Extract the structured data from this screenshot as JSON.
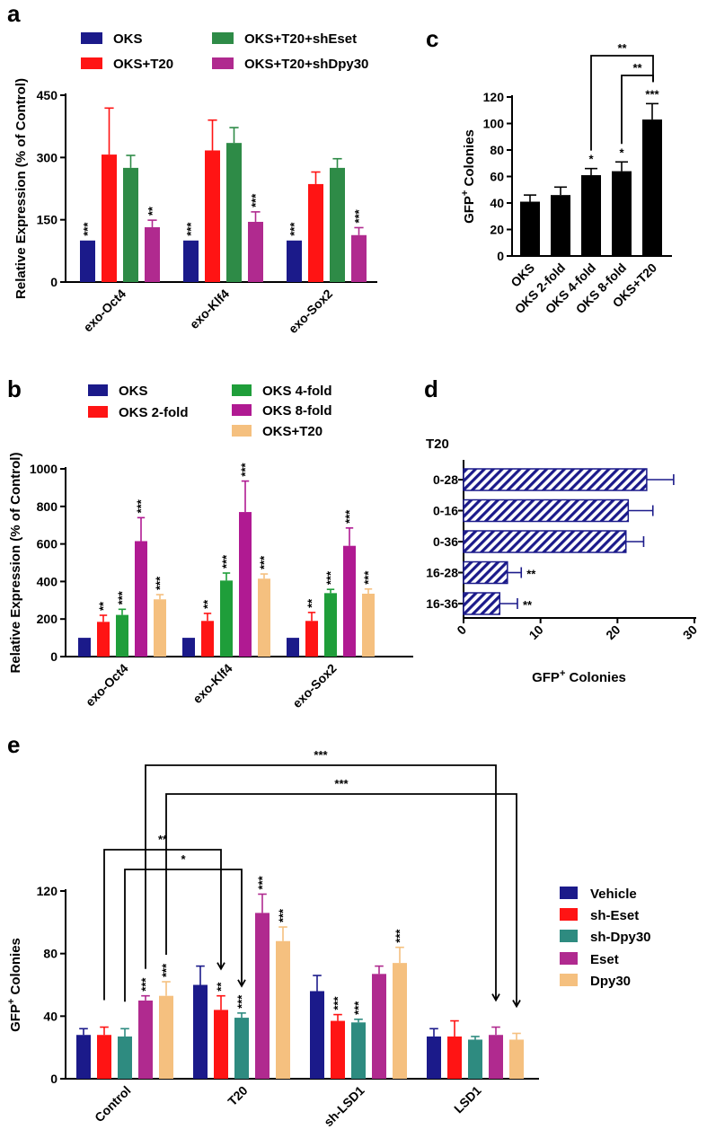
{
  "chart_data": [
    {
      "id": "a",
      "panel_label": "a",
      "type": "bar",
      "ylabel": "Relative Expression (% of Control)",
      "ylim": [
        0,
        450
      ],
      "yticks": [
        0,
        150,
        300,
        450
      ],
      "categories": [
        "exo-Oct4",
        "exo-Klf4",
        "exo-Sox2"
      ],
      "legend": "top",
      "series": [
        {
          "name": "OKS",
          "color": "#1b1a8a",
          "values": [
            100,
            100,
            100
          ],
          "errors": [
            0,
            0,
            0
          ],
          "stars": [
            "***",
            "***",
            "***"
          ]
        },
        {
          "name": "OKS+T20",
          "color": "#ff1414",
          "values": [
            307,
            317,
            236
          ],
          "errors": [
            112,
            73,
            29
          ],
          "stars": [
            "",
            "",
            ""
          ]
        },
        {
          "name": "OKS+T20+shEset",
          "color": "#2e8b47",
          "values": [
            275,
            335,
            275
          ],
          "errors": [
            30,
            37,
            22
          ],
          "stars": [
            "",
            "",
            ""
          ]
        },
        {
          "name": "OKS+T20+shDpy30",
          "color": "#b02a8f",
          "values": [
            132,
            145,
            113
          ],
          "errors": [
            17,
            24,
            18
          ],
          "stars": [
            "**",
            "***",
            "***"
          ]
        }
      ]
    },
    {
      "id": "b",
      "panel_label": "b",
      "type": "bar",
      "ylabel": "Relative Expression (% of Control)",
      "ylim": [
        0,
        1000
      ],
      "yticks": [
        0,
        200,
        400,
        600,
        800,
        1000
      ],
      "categories": [
        "exo-Oct4",
        "exo-Klf4",
        "exo-Sox2"
      ],
      "legend": "top",
      "series": [
        {
          "name": "OKS",
          "color": "#1b1a8a",
          "values": [
            100,
            100,
            100
          ],
          "errors": [
            0,
            0,
            0
          ],
          "stars": [
            "",
            "",
            ""
          ]
        },
        {
          "name": "OKS 2-fold",
          "color": "#ff1414",
          "values": [
            185,
            190,
            190
          ],
          "errors": [
            35,
            40,
            45
          ],
          "stars": [
            "**",
            "**",
            "**"
          ]
        },
        {
          "name": "OKS 4-fold",
          "color": "#1f9e3a",
          "values": [
            222,
            405,
            338
          ],
          "errors": [
            30,
            40,
            20
          ],
          "stars": [
            "***",
            "***",
            "***"
          ]
        },
        {
          "name": "OKS 8-fold",
          "color": "#b01a92",
          "values": [
            615,
            770,
            590
          ],
          "errors": [
            125,
            165,
            95
          ],
          "stars": [
            "***",
            "***",
            "***"
          ]
        },
        {
          "name": "OKS+T20",
          "color": "#f5c07f",
          "values": [
            305,
            415,
            335
          ],
          "errors": [
            25,
            25,
            25
          ],
          "stars": [
            "***",
            "***",
            "***"
          ]
        }
      ]
    },
    {
      "id": "c",
      "panel_label": "c",
      "type": "bar",
      "ylabel": "GFP+ Colonies",
      "ylim": [
        0,
        120
      ],
      "yticks": [
        0,
        20,
        40,
        60,
        80,
        100,
        120
      ],
      "categories": [
        "OKS",
        "OKS 2-fold",
        "OKS 4-fold",
        "OKS 8-fold",
        "OKS+T20"
      ],
      "values": [
        41,
        46,
        61,
        64,
        103
      ],
      "errors": [
        5,
        6,
        5,
        7,
        12
      ],
      "stars": [
        "",
        "",
        "*",
        "*",
        "***"
      ],
      "color": "#000000",
      "comparisons": [
        {
          "from": 2,
          "to": 4,
          "label": "**"
        },
        {
          "from": 3,
          "to": 4,
          "label": "**"
        }
      ]
    },
    {
      "id": "d",
      "panel_label": "d",
      "type": "bar",
      "orientation": "horizontal",
      "group_title": "T20",
      "xlabel": "GFP+ Colonies",
      "xlim": [
        0,
        30
      ],
      "xticks": [
        0,
        10,
        20,
        30
      ],
      "categories": [
        "0-28",
        "0-16",
        "0-36",
        "16-28",
        "16-36"
      ],
      "values": [
        23.8,
        21.4,
        21.1,
        5.7,
        4.7
      ],
      "errors": [
        3.5,
        3.2,
        2.3,
        1.8,
        2.3
      ],
      "stars": [
        "",
        "",
        "",
        "**",
        "**"
      ],
      "color": "#1b1a8a"
    },
    {
      "id": "e",
      "panel_label": "e",
      "type": "bar",
      "ylabel": "GFP+ Colonies",
      "ylim": [
        0,
        120
      ],
      "yticks": [
        0,
        40,
        80,
        120
      ],
      "categories": [
        "Control",
        "T20",
        "sh-LSD1",
        "LSD1"
      ],
      "legend": "right",
      "series": [
        {
          "name": "Vehicle",
          "color": "#1b1a8a",
          "values": [
            28,
            60,
            56,
            27
          ],
          "errors": [
            4,
            12,
            10,
            5
          ],
          "stars": [
            "",
            "",
            "",
            ""
          ]
        },
        {
          "name": "sh-Eset",
          "color": "#ff1414",
          "values": [
            28,
            44,
            37,
            27
          ],
          "errors": [
            5,
            9,
            4,
            10
          ],
          "stars": [
            "",
            "**",
            "***",
            ""
          ]
        },
        {
          "name": "sh-Dpy30",
          "color": "#2e8b80",
          "values": [
            27,
            39,
            36,
            25
          ],
          "errors": [
            5,
            3,
            2,
            2
          ],
          "stars": [
            "",
            "***",
            "***",
            ""
          ]
        },
        {
          "name": "Eset",
          "color": "#b02a8f",
          "values": [
            50,
            106,
            67,
            28
          ],
          "errors": [
            3,
            12,
            5,
            5
          ],
          "stars": [
            "***",
            "***",
            "",
            ""
          ]
        },
        {
          "name": "Dpy30",
          "color": "#f5c07f",
          "values": [
            53,
            88,
            74,
            25
          ],
          "errors": [
            9,
            9,
            10,
            4
          ],
          "stars": [
            "***",
            "***",
            "***",
            ""
          ]
        }
      ],
      "comparisons": [
        {
          "label": "***",
          "from_group": 0,
          "from_series": 3,
          "to_group": 3,
          "to_series": 3
        },
        {
          "label": "***",
          "from_group": 0,
          "from_series": 4,
          "to_group": 3,
          "to_series": 4
        },
        {
          "label": "**",
          "from_group": 0,
          "from_series": 1,
          "to_group": 1,
          "to_series": 1
        },
        {
          "label": "*",
          "from_group": 0,
          "from_series": 2,
          "to_group": 1,
          "to_series": 2
        }
      ]
    }
  ]
}
